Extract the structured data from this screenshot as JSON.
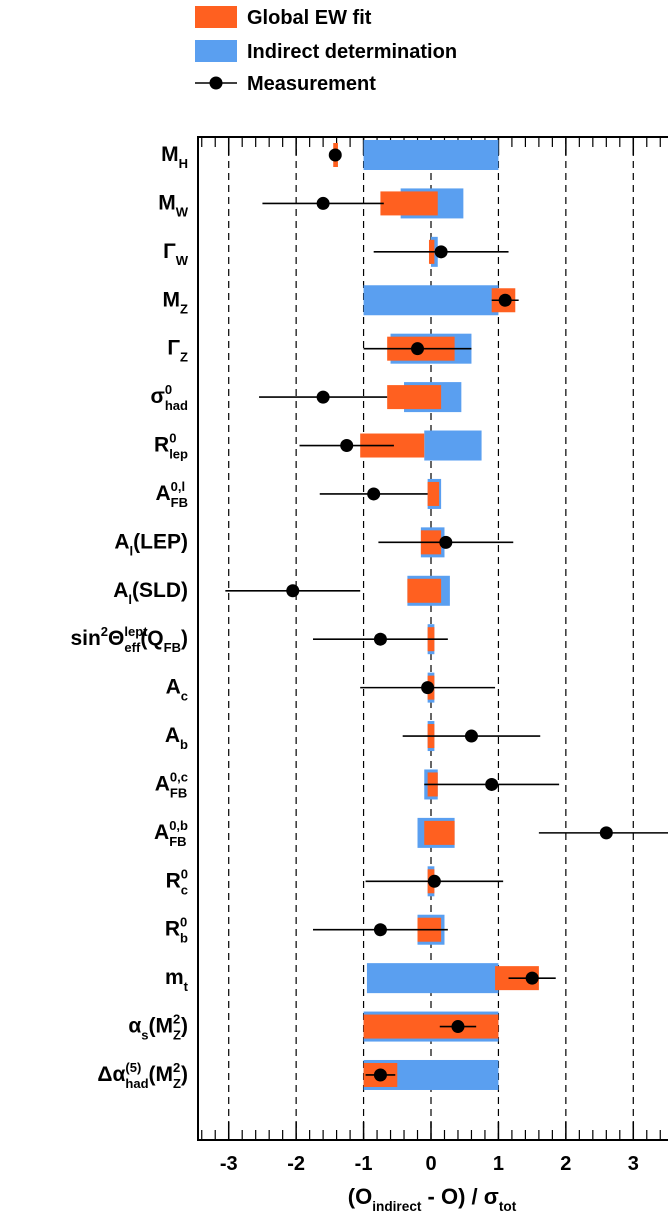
{
  "chart_data": {
    "type": "pull",
    "xlim": [
      -3.5,
      3.5
    ],
    "xticks": [
      -3,
      -2,
      -1,
      0,
      1,
      2,
      3
    ],
    "xticks_minor": [
      -3.4,
      -3.2,
      -2.8,
      -2.6,
      -2.4,
      -2.2,
      -1.8,
      -1.6,
      -1.4,
      -1.2,
      -0.8,
      -0.6,
      -0.4,
      -0.2,
      0.2,
      0.4,
      0.6,
      0.8,
      1.2,
      1.4,
      1.6,
      1.8,
      2.2,
      2.4,
      2.6,
      2.8,
      3.2,
      3.4
    ],
    "grid": true,
    "xlabel": [
      {
        "t": "(O"
      },
      {
        "t": "indirect",
        "pos": "sub"
      },
      {
        "t": " - O) /  σ"
      },
      {
        "t": "tot",
        "pos": "sub"
      }
    ],
    "categories": [
      [
        {
          "t": "M"
        },
        {
          "t": "H",
          "pos": "sub"
        }
      ],
      [
        {
          "t": "M"
        },
        {
          "t": "W",
          "pos": "sub"
        }
      ],
      [
        {
          "t": "Γ"
        },
        {
          "t": "W",
          "pos": "sub"
        }
      ],
      [
        {
          "t": "M"
        },
        {
          "t": "Z",
          "pos": "sub"
        }
      ],
      [
        {
          "t": "Γ"
        },
        {
          "t": "Z",
          "pos": "sub"
        }
      ],
      [
        {
          "t": "σ"
        },
        {
          "t": "0",
          "pos": "sup"
        },
        {
          "t": "had",
          "pos": "sub"
        }
      ],
      [
        {
          "t": "R"
        },
        {
          "t": "0",
          "pos": "sup"
        },
        {
          "t": "lep",
          "pos": "sub"
        }
      ],
      [
        {
          "t": "A"
        },
        {
          "t": "0,l",
          "pos": "sup"
        },
        {
          "t": "FB",
          "pos": "sub"
        }
      ],
      [
        {
          "t": "A"
        },
        {
          "t": "l",
          "pos": "sub"
        },
        {
          "t": "(LEP)"
        }
      ],
      [
        {
          "t": "A"
        },
        {
          "t": "l",
          "pos": "sub"
        },
        {
          "t": "(SLD)"
        }
      ],
      [
        {
          "t": "sin"
        },
        {
          "t": "2",
          "pos": "sup"
        },
        {
          "t": "Θ"
        },
        {
          "t": "lept",
          "pos": "sup"
        },
        {
          "t": "eff",
          "pos": "sub"
        },
        {
          "t": "(Q"
        },
        {
          "t": "FB",
          "pos": "sub"
        },
        {
          "t": ")"
        }
      ],
      [
        {
          "t": "A"
        },
        {
          "t": "c",
          "pos": "sub"
        }
      ],
      [
        {
          "t": "A"
        },
        {
          "t": "b",
          "pos": "sub"
        }
      ],
      [
        {
          "t": "A"
        },
        {
          "t": "0,c",
          "pos": "sup"
        },
        {
          "t": "FB",
          "pos": "sub"
        }
      ],
      [
        {
          "t": "A"
        },
        {
          "t": "0,b",
          "pos": "sup"
        },
        {
          "t": "FB",
          "pos": "sub"
        }
      ],
      [
        {
          "t": "R"
        },
        {
          "t": "0",
          "pos": "sup"
        },
        {
          "t": "c",
          "pos": "sub"
        }
      ],
      [
        {
          "t": "R"
        },
        {
          "t": "0",
          "pos": "sup"
        },
        {
          "t": "b",
          "pos": "sub"
        }
      ],
      [
        {
          "t": "m"
        },
        {
          "t": "t",
          "pos": "sub"
        }
      ],
      [
        {
          "t": "α"
        },
        {
          "t": "s",
          "pos": "sub"
        },
        {
          "t": "(M"
        },
        {
          "t": "2",
          "pos": "sup"
        },
        {
          "t": "Z",
          "pos": "sub"
        },
        {
          "t": ")"
        }
      ],
      [
        {
          "t": "Δα"
        },
        {
          "t": "(5)",
          "pos": "sup"
        },
        {
          "t": "had",
          "pos": "sub"
        },
        {
          "t": "(M"
        },
        {
          "t": "2",
          "pos": "sup"
        },
        {
          "t": "Z",
          "pos": "sub"
        },
        {
          "t": ")"
        }
      ]
    ],
    "series": [
      {
        "name": "Global EW fit",
        "color": "#ff6020",
        "values": [
          [
            -1.45,
            -1.38
          ],
          [
            -0.75,
            0.1
          ],
          [
            -0.03,
            0.05
          ],
          [
            0.9,
            1.25
          ],
          [
            -0.65,
            0.35
          ],
          [
            -0.65,
            0.15
          ],
          [
            -1.05,
            -0.1
          ],
          [
            -0.05,
            0.12
          ],
          [
            -0.15,
            0.15
          ],
          [
            -0.35,
            0.15
          ],
          [
            -0.05,
            0.05
          ],
          [
            -0.05,
            0.05
          ],
          [
            -0.05,
            0.05
          ],
          [
            -0.05,
            0.1
          ],
          [
            -0.1,
            0.35
          ],
          [
            -0.05,
            0.05
          ],
          [
            -0.2,
            0.15
          ],
          [
            0.95,
            1.6
          ],
          [
            -1.0,
            1.0
          ],
          [
            -1.0,
            -0.5
          ]
        ]
      },
      {
        "name": "Indirect determination",
        "color": "#5a9ff0",
        "values": [
          [
            -1.0,
            1.0
          ],
          [
            -0.45,
            0.48
          ],
          [
            0.0,
            0.1
          ],
          [
            -1.0,
            1.0
          ],
          [
            -0.6,
            0.6
          ],
          [
            -0.4,
            0.45
          ],
          [
            -0.1,
            0.75
          ],
          [
            -0.05,
            0.15
          ],
          [
            -0.15,
            0.2
          ],
          [
            -0.35,
            0.28
          ],
          [
            -0.05,
            0.05
          ],
          [
            -0.05,
            0.05
          ],
          [
            -0.05,
            0.05
          ],
          [
            -0.1,
            0.1
          ],
          [
            -0.2,
            0.35
          ],
          [
            -0.05,
            0.05
          ],
          [
            -0.2,
            0.2
          ],
          [
            -0.95,
            1.0
          ],
          [
            -1.0,
            1.0
          ],
          [
            -1.0,
            1.0
          ]
        ]
      },
      {
        "name": "Measurement",
        "color": "#000000",
        "values": [
          -1.42,
          -1.6,
          0.15,
          1.1,
          -0.2,
          -1.6,
          -1.25,
          -0.85,
          0.22,
          -2.05,
          -0.75,
          -0.05,
          0.6,
          0.9,
          2.6,
          0.05,
          -0.75,
          1.5,
          0.4,
          -0.75
        ],
        "errors": [
          0.05,
          0.9,
          1.0,
          0.2,
          0.8,
          0.95,
          0.7,
          0.8,
          1.0,
          1.0,
          1.0,
          1.0,
          1.02,
          1.0,
          1.0,
          1.02,
          1.0,
          0.35,
          0.27,
          0.22
        ]
      }
    ]
  }
}
